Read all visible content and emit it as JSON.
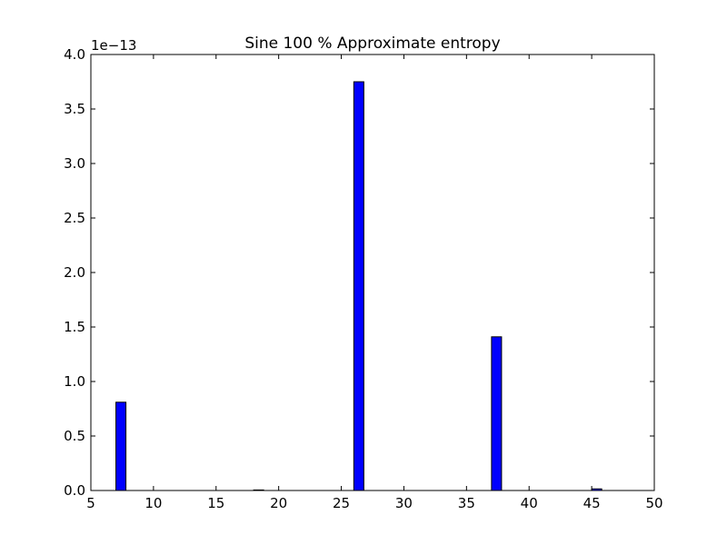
{
  "chart_data": {
    "type": "bar",
    "title": "Sine 100 % Approximate entropy",
    "xlabel": "",
    "ylabel": "",
    "y_offset_label": "1e−13",
    "xlim": [
      5,
      50
    ],
    "ylim": [
      0,
      4.0
    ],
    "xticks": [
      "5",
      "10",
      "15",
      "20",
      "25",
      "30",
      "35",
      "40",
      "45",
      "50"
    ],
    "yticks": [
      "0.0",
      "0.5",
      "1.0",
      "1.5",
      "2.0",
      "2.5",
      "3.0",
      "3.5",
      "4.0"
    ],
    "bar_width": 0.8,
    "bar_color": "#0000ff",
    "x": [
      7,
      18,
      26,
      37,
      45
    ],
    "values": [
      0.81,
      0.005,
      3.75,
      1.41,
      0.015
    ],
    "grid": false,
    "legend": "none"
  }
}
